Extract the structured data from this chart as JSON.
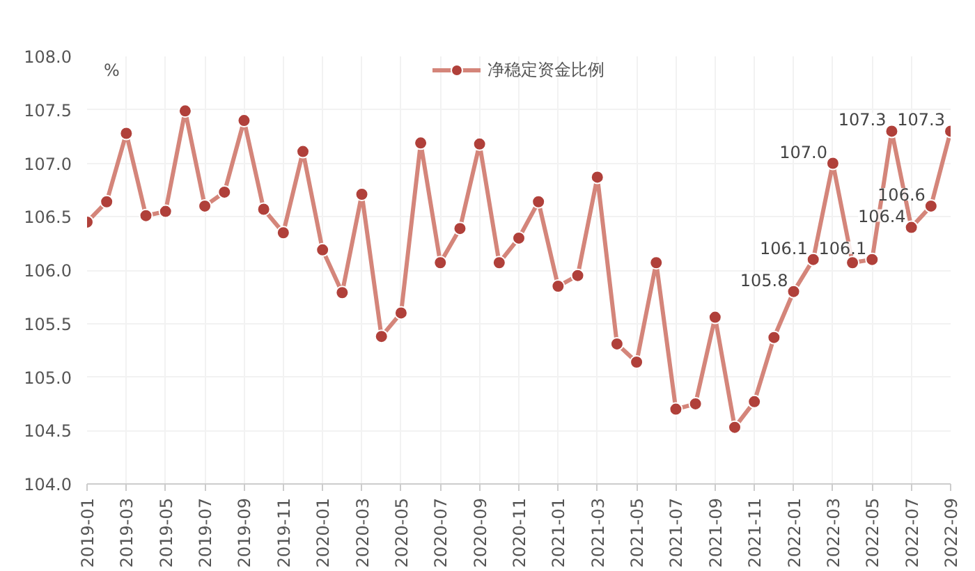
{
  "chart_data": {
    "type": "line",
    "ylabel": "%",
    "legend": "top",
    "x": [
      "2019-01",
      "2019-02",
      "2019-03",
      "2019-04",
      "2019-05",
      "2019-06",
      "2019-07",
      "2019-08",
      "2019-09",
      "2019-10",
      "2019-11",
      "2019-12",
      "2020-01",
      "2020-02",
      "2020-03",
      "2020-04",
      "2020-05",
      "2020-06",
      "2020-07",
      "2020-08",
      "2020-09",
      "2020-10",
      "2020-11",
      "2020-12",
      "2021-01",
      "2021-02",
      "2021-03",
      "2021-04",
      "2021-05",
      "2021-06",
      "2021-07",
      "2021-08",
      "2021-09",
      "2021-10",
      "2021-11",
      "2021-12",
      "2022-01",
      "2022-02",
      "2022-03",
      "2022-04",
      "2022-05",
      "2022-06",
      "2022-07",
      "2022-08",
      "2022-09"
    ],
    "series": [
      {
        "name": "净稳定资金比例",
        "color": "#d4857a",
        "values": [
          106.45,
          106.64,
          107.28,
          106.51,
          106.55,
          107.49,
          106.6,
          106.73,
          107.4,
          106.57,
          106.35,
          107.11,
          106.19,
          105.79,
          106.71,
          105.38,
          105.6,
          107.19,
          106.07,
          106.39,
          107.18,
          106.07,
          106.3,
          106.64,
          105.85,
          105.95,
          106.87,
          105.31,
          105.14,
          106.07,
          104.7,
          104.75,
          105.56,
          104.53,
          104.77,
          105.37,
          105.8,
          106.1,
          107.0,
          106.07,
          106.1,
          107.3,
          106.4,
          106.6,
          107.3
        ],
        "value_labels": [
          null,
          null,
          null,
          null,
          null,
          null,
          null,
          null,
          null,
          null,
          null,
          null,
          null,
          null,
          null,
          null,
          null,
          null,
          null,
          null,
          null,
          null,
          null,
          null,
          null,
          null,
          null,
          null,
          null,
          null,
          null,
          null,
          null,
          null,
          null,
          null,
          "105.8",
          "106.1",
          "107.0",
          null,
          "106.1",
          "107.3",
          "106.4",
          "106.6",
          "107.3"
        ]
      }
    ],
    "marker": "circle",
    "line_style": "solid",
    "grid": true,
    "xlim": [
      "2019-01",
      "2022-09"
    ],
    "xticks": [
      "2019-01",
      "2019-03",
      "2019-05",
      "2019-07",
      "2019-09",
      "2019-11",
      "2020-01",
      "2020-03",
      "2020-05",
      "2020-07",
      "2020-09",
      "2020-11",
      "2021-01",
      "2021-03",
      "2021-05",
      "2021-07",
      "2021-09",
      "2021-11",
      "2022-01",
      "2022-03",
      "2022-05",
      "2022-07",
      "2022-09"
    ],
    "ylim": [
      104,
      108
    ],
    "yticks": [
      {
        "value": 104,
        "label": "104.0"
      },
      {
        "value": 104.5,
        "label": "104.5"
      },
      {
        "value": 105,
        "label": "105.0"
      },
      {
        "value": 105.5,
        "label": "105.5"
      },
      {
        "value": 106,
        "label": "106.0"
      },
      {
        "value": 106.5,
        "label": "106.5"
      },
      {
        "value": 107,
        "label": "107.0"
      },
      {
        "value": 107.5,
        "label": "107.5"
      },
      {
        "value": 108,
        "label": "108.0"
      }
    ]
  }
}
